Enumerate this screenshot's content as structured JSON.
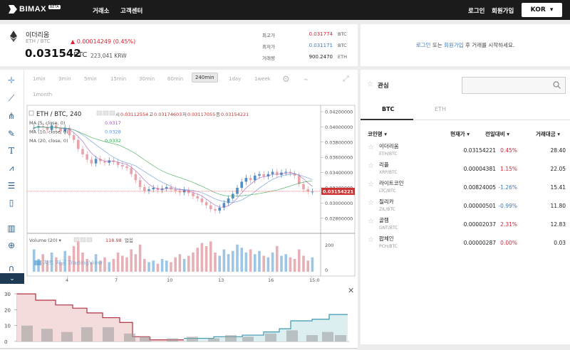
{
  "nav": {
    "logo": "BIMAX",
    "logo_badge": "BETA",
    "exchange": "거래소",
    "support": "고객센터",
    "login": "로그인",
    "signup": "회원가입",
    "lang": "KOR"
  },
  "coin": {
    "name": "이더리움",
    "pair": "ETH / BTC",
    "change": "▲ 0.00014249 (0.45%)",
    "price": "0.031542",
    "unit": "BTC",
    "krw": "223,041 KRW"
  },
  "stats": [
    {
      "label": "최고가",
      "value": "0.031774",
      "unit": "BTC",
      "color": "#d23"
    },
    {
      "label": "최저가",
      "value": "0.031171",
      "unit": "BTC",
      "color": "#3b7bbf"
    },
    {
      "label": "거래량",
      "value": "900.2470",
      "unit": "ETH",
      "color": "#222"
    }
  ],
  "login_msg": {
    "login": "로그인",
    "or": " 또는 ",
    "signup": "회원가입",
    "rest": " 후 거래를 시작하세요."
  },
  "timeframes": [
    "1min",
    "3min",
    "5min",
    "15min",
    "30min",
    "60min",
    "240min",
    "1day",
    "1week",
    "1month"
  ],
  "active_timeframe": "240min",
  "chart": {
    "symbol": "ETH / BTC, 240",
    "ohlc": {
      "o_label": "시",
      "o": "0.03112554",
      "h_label": "고",
      "h": "0.03174603",
      "l_label": "저",
      "l": "0.03117055",
      "c_label": "종",
      "c": "0.03154221"
    },
    "ma": [
      {
        "label": "MA (5, close, 0)",
        "value": "0.0317",
        "color": "#9b59b6"
      },
      {
        "label": "MA (10, close, 0)",
        "value": "0.0328",
        "color": "#5a8fd6"
      },
      {
        "label": "MA (20, close, 0)",
        "value": "0.0332",
        "color": "#2ea84a"
      }
    ],
    "yticks": [
      "0.04200000",
      "0.04000000",
      "0.03800000",
      "0.03600000",
      "0.03400000",
      "0.03200000",
      "0.03000000",
      "0.02800000"
    ],
    "last_price": "0.03154221",
    "volume_label": "Volume (20)",
    "volume_value": "118.98",
    "volume_unit": "업음",
    "vol_ticks": [
      "200",
      "0"
    ],
    "xticks": [
      "4",
      "7",
      "10",
      "13",
      "16",
      "15:0"
    ],
    "watermark": "차트 제공 TradingView"
  },
  "depth": {
    "yticks": [
      "30",
      "20",
      "10",
      "0"
    ]
  },
  "right": {
    "fav_label": "관심",
    "tabs": [
      "BTC",
      "ETH"
    ],
    "headers": [
      "코인명 ▾",
      "현재가 ▾",
      "전일대비 ▾",
      "거래대금 ▾"
    ],
    "rows": [
      {
        "name": "이더리움",
        "pair": "ETH/BTC",
        "price": "0.03154221",
        "change": "0.45%",
        "dir": "up",
        "volume": "28.40"
      },
      {
        "name": "리플",
        "pair": "XRP/BTC",
        "price": "0.00004381",
        "change": "1.15%",
        "dir": "up",
        "volume": "22.05"
      },
      {
        "name": "라이트코인",
        "pair": "LTC/BTC",
        "price": "0.00824005",
        "change": "-1.26%",
        "dir": "down",
        "volume": "15.41"
      },
      {
        "name": "질리카",
        "pair": "ZIL/BTC",
        "price": "0.00000501",
        "change": "-0.99%",
        "dir": "down",
        "volume": "11.80"
      },
      {
        "name": "골렘",
        "pair": "GNT/BTC",
        "price": "0.00002037",
        "change": "2.31%",
        "dir": "up",
        "volume": "12.83"
      },
      {
        "name": "팝체인",
        "pair": "PCH/BTC",
        "price": "0.00000287",
        "change": "0.00%",
        "dir": "flat",
        "volume": "0.03"
      }
    ]
  }
}
